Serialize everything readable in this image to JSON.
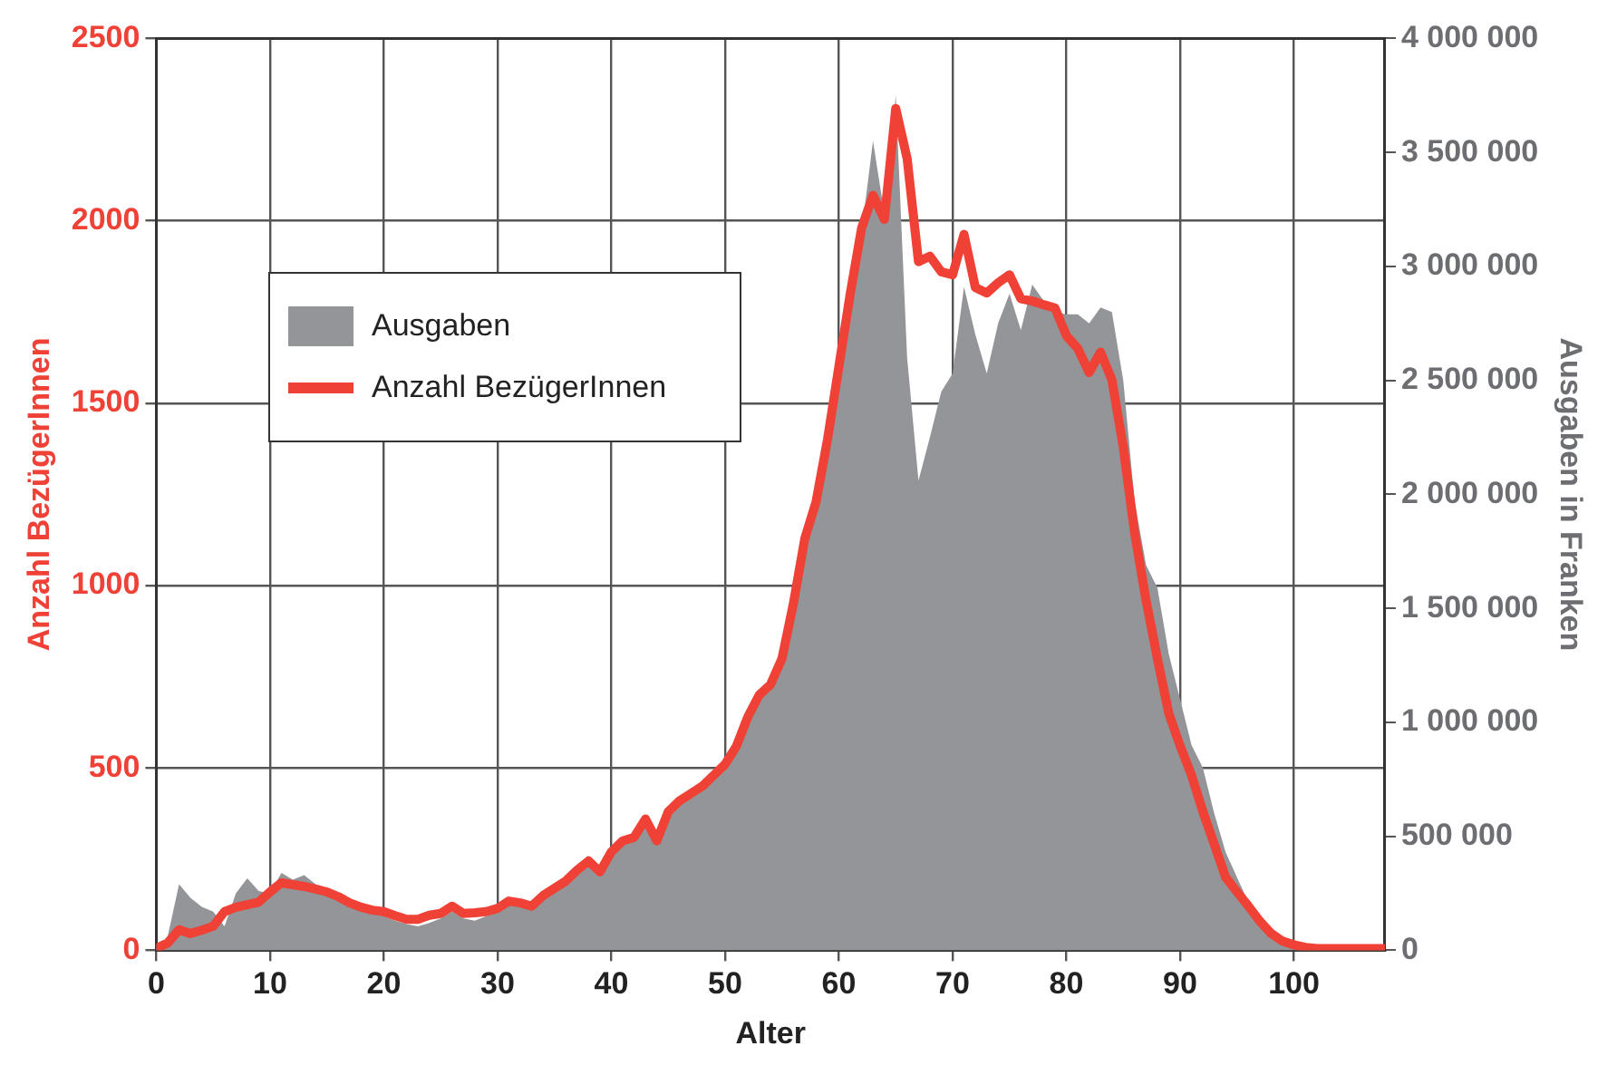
{
  "chart_data": {
    "type": "line",
    "xlabel": "Alter",
    "ylabel": "Anzahl BezügerInnen",
    "y2label": "Ausgaben in Franken",
    "xlim": [
      0,
      108
    ],
    "xticks": [
      0,
      10,
      20,
      30,
      40,
      50,
      60,
      70,
      80,
      90,
      100
    ],
    "ylim": [
      0,
      2500
    ],
    "yticks": [
      0,
      500,
      1000,
      1500,
      2000,
      2500
    ],
    "y2lim": [
      0,
      4000000
    ],
    "y2ticks": [
      {
        "value": 0,
        "label": "0"
      },
      {
        "value": 500000,
        "label": "500 000"
      },
      {
        "value": 1000000,
        "label": "1 000 000"
      },
      {
        "value": 1500000,
        "label": "1 500 000"
      },
      {
        "value": 2000000,
        "label": "2 000 000"
      },
      {
        "value": 2500000,
        "label": "2 500 000"
      },
      {
        "value": 3000000,
        "label": "3 000 000"
      },
      {
        "value": 3500000,
        "label": "3 500 000"
      },
      {
        "value": 4000000,
        "label": "4 000 000"
      }
    ],
    "grid": true,
    "legend": "top left",
    "x": [
      0,
      1,
      2,
      3,
      4,
      5,
      6,
      7,
      8,
      9,
      10,
      11,
      12,
      13,
      14,
      15,
      16,
      17,
      18,
      19,
      20,
      21,
      22,
      23,
      24,
      25,
      26,
      27,
      28,
      29,
      30,
      31,
      32,
      33,
      34,
      35,
      36,
      37,
      38,
      39,
      40,
      41,
      42,
      43,
      44,
      45,
      46,
      47,
      48,
      49,
      50,
      51,
      52,
      53,
      54,
      55,
      56,
      57,
      58,
      59,
      60,
      61,
      62,
      63,
      64,
      65,
      66,
      67,
      68,
      69,
      70,
      71,
      72,
      73,
      74,
      75,
      76,
      77,
      78,
      79,
      80,
      81,
      82,
      83,
      84,
      85,
      86,
      87,
      88,
      89,
      90,
      91,
      92,
      93,
      94,
      95,
      96,
      97,
      98,
      99,
      100,
      101,
      102,
      103,
      104,
      105,
      106,
      107,
      108
    ],
    "series": [
      {
        "name": "Ausgaben",
        "type": "area",
        "axis": "y2",
        "color": "#939598",
        "values": [
          10000,
          60000,
          290000,
          230000,
          190000,
          170000,
          105000,
          250000,
          316000,
          260000,
          250000,
          340000,
          310000,
          330000,
          290000,
          250000,
          225000,
          200000,
          180000,
          165000,
          150000,
          130000,
          115000,
          105000,
          120000,
          140000,
          170000,
          140000,
          130000,
          150000,
          170000,
          200000,
          190000,
          180000,
          220000,
          260000,
          290000,
          340000,
          380000,
          330000,
          420000,
          470000,
          480000,
          560000,
          480000,
          600000,
          650000,
          680000,
          710000,
          760000,
          800000,
          880000,
          1000000,
          1100000,
          1150000,
          1280000,
          1500000,
          1750000,
          1950000,
          2200000,
          2500000,
          2850000,
          3150000,
          3550000,
          3230000,
          3750000,
          2600000,
          2060000,
          2250000,
          2450000,
          2530000,
          2910000,
          2700000,
          2530000,
          2750000,
          2880000,
          2720000,
          2920000,
          2850000,
          2800000,
          2790000,
          2790000,
          2750000,
          2820000,
          2800000,
          2500000,
          1970000,
          1690000,
          1590000,
          1300000,
          1100000,
          900000,
          800000,
          600000,
          430000,
          320000,
          210000,
          140000,
          100000,
          60000,
          40000,
          20000,
          10000,
          5000,
          5000,
          5000,
          5000,
          5000,
          5000
        ]
      },
      {
        "name": "Anzahl BezügerInnen",
        "type": "line",
        "color": "#ef4136",
        "values": [
          5,
          20,
          56,
          46,
          55,
          66,
          106,
          118,
          125,
          132,
          160,
          185,
          180,
          175,
          168,
          160,
          147,
          130,
          118,
          110,
          106,
          95,
          85,
          85,
          96,
          101,
          121,
          101,
          103,
          106,
          115,
          135,
          130,
          121,
          150,
          170,
          190,
          220,
          245,
          215,
          270,
          300,
          310,
          360,
          300,
          380,
          410,
          430,
          450,
          480,
          510,
          560,
          640,
          700,
          729,
          800,
          950,
          1128,
          1230,
          1400,
          1600,
          1800,
          1980,
          2070,
          2004,
          2308,
          2171,
          1888,
          1903,
          1860,
          1852,
          1963,
          1817,
          1802,
          1830,
          1852,
          1786,
          1780,
          1770,
          1761,
          1685,
          1650,
          1584,
          1640,
          1564,
          1380,
          1144,
          960,
          800,
          650,
          560,
          480,
          380,
          290,
          200,
          160,
          121,
          80,
          46,
          25,
          15,
          8,
          5,
          5,
          5,
          5,
          5,
          5,
          5
        ]
      }
    ]
  }
}
